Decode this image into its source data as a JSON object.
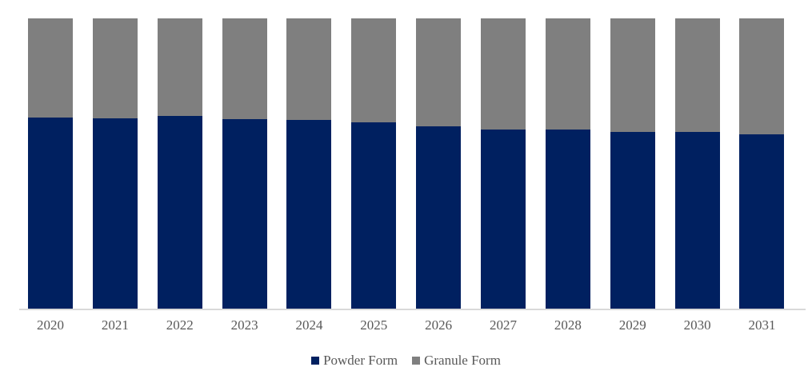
{
  "chart_data": {
    "type": "bar",
    "subtype": "stacked-100-percent",
    "orientation": "vertical",
    "title": "",
    "xlabel": "",
    "ylabel": "",
    "categories": [
      "2020",
      "2021",
      "2022",
      "2023",
      "2024",
      "2025",
      "2026",
      "2027",
      "2028",
      "2029",
      "2030",
      "2031"
    ],
    "series": [
      {
        "name": "Powder Form",
        "color": "#002060",
        "values": [
          65.8,
          65.6,
          66.3,
          65.3,
          65.0,
          64.1,
          62.9,
          61.7,
          61.7,
          60.9,
          60.9,
          60.0
        ]
      },
      {
        "name": "Granule Form",
        "color": "#7f7f7f",
        "values": [
          34.2,
          34.4,
          33.7,
          34.7,
          35.0,
          35.9,
          37.1,
          38.3,
          38.3,
          39.1,
          39.1,
          40.0
        ]
      }
    ],
    "ylim": [
      0,
      100
    ],
    "y_axis_visible": false,
    "grid": false,
    "legend_position": "bottom",
    "axis_line_color": "#d9d9d9",
    "label_color": "#595959",
    "background_color": "#ffffff"
  },
  "legend": {
    "items": [
      {
        "label": "Powder Form",
        "color": "#002060"
      },
      {
        "label": "Granule Form",
        "color": "#7f7f7f"
      }
    ]
  }
}
